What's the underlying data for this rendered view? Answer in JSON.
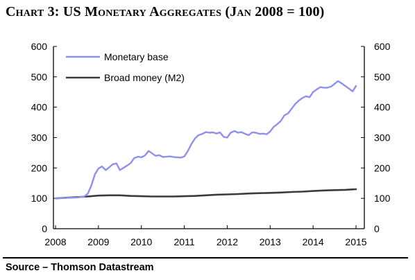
{
  "chart_data": {
    "type": "line",
    "title": "Chart 3: US Monetary Aggregates (Jan 2008 = 100)",
    "source": "Source – Thomson Datastream",
    "ylim": [
      0,
      600
    ],
    "xlim": [
      2008,
      2015.25
    ],
    "y_ticks": [
      "0",
      "100",
      "200",
      "300",
      "400",
      "500",
      "600"
    ],
    "y_tick_values": [
      0,
      100,
      200,
      300,
      400,
      500,
      600
    ],
    "x_ticks": [
      "2008",
      "2009",
      "2010",
      "2011",
      "2012",
      "2013",
      "2014",
      "2015"
    ],
    "x_tick_values": [
      2008,
      2009,
      2010,
      2011,
      2012,
      2013,
      2014,
      2015
    ],
    "legend_position": "top-left",
    "grid": false,
    "dual_axis_mirrored": true,
    "series": [
      {
        "name": "Monetary base",
        "color": "#8f8ff0",
        "points": [
          [
            2008.0,
            100
          ],
          [
            2008.17,
            101
          ],
          [
            2008.33,
            102
          ],
          [
            2008.5,
            103
          ],
          [
            2008.67,
            106
          ],
          [
            2008.75,
            115
          ],
          [
            2008.83,
            140
          ],
          [
            2008.92,
            180
          ],
          [
            2009.0,
            198
          ],
          [
            2009.08,
            205
          ],
          [
            2009.17,
            193
          ],
          [
            2009.25,
            202
          ],
          [
            2009.33,
            212
          ],
          [
            2009.42,
            215
          ],
          [
            2009.5,
            193
          ],
          [
            2009.58,
            200
          ],
          [
            2009.67,
            208
          ],
          [
            2009.75,
            216
          ],
          [
            2009.83,
            232
          ],
          [
            2009.92,
            237
          ],
          [
            2010.0,
            235
          ],
          [
            2010.08,
            241
          ],
          [
            2010.17,
            256
          ],
          [
            2010.25,
            248
          ],
          [
            2010.33,
            240
          ],
          [
            2010.42,
            242
          ],
          [
            2010.5,
            236
          ],
          [
            2010.58,
            237
          ],
          [
            2010.67,
            238
          ],
          [
            2010.75,
            236
          ],
          [
            2010.83,
            235
          ],
          [
            2010.92,
            234
          ],
          [
            2011.0,
            238
          ],
          [
            2011.08,
            255
          ],
          [
            2011.17,
            280
          ],
          [
            2011.25,
            297
          ],
          [
            2011.33,
            308
          ],
          [
            2011.42,
            312
          ],
          [
            2011.5,
            318
          ],
          [
            2011.58,
            316
          ],
          [
            2011.67,
            317
          ],
          [
            2011.75,
            313
          ],
          [
            2011.83,
            317
          ],
          [
            2011.92,
            302
          ],
          [
            2012.0,
            300
          ],
          [
            2012.08,
            316
          ],
          [
            2012.17,
            322
          ],
          [
            2012.25,
            316
          ],
          [
            2012.33,
            318
          ],
          [
            2012.42,
            312
          ],
          [
            2012.5,
            308
          ],
          [
            2012.58,
            317
          ],
          [
            2012.67,
            316
          ],
          [
            2012.75,
            312
          ],
          [
            2012.83,
            313
          ],
          [
            2012.92,
            311
          ],
          [
            2013.0,
            320
          ],
          [
            2013.08,
            335
          ],
          [
            2013.17,
            345
          ],
          [
            2013.25,
            355
          ],
          [
            2013.33,
            373
          ],
          [
            2013.42,
            380
          ],
          [
            2013.5,
            395
          ],
          [
            2013.58,
            410
          ],
          [
            2013.67,
            422
          ],
          [
            2013.75,
            430
          ],
          [
            2013.83,
            436
          ],
          [
            2013.92,
            433
          ],
          [
            2014.0,
            450
          ],
          [
            2014.08,
            458
          ],
          [
            2014.17,
            466
          ],
          [
            2014.25,
            464
          ],
          [
            2014.33,
            464
          ],
          [
            2014.42,
            468
          ],
          [
            2014.5,
            477
          ],
          [
            2014.58,
            486
          ],
          [
            2014.67,
            478
          ],
          [
            2014.75,
            470
          ],
          [
            2014.83,
            462
          ],
          [
            2014.92,
            452
          ],
          [
            2015.0,
            470
          ]
        ]
      },
      {
        "name": "Broad money (M2)",
        "color": "#3a3a3a",
        "points": [
          [
            2008.0,
            100
          ],
          [
            2008.25,
            102
          ],
          [
            2008.5,
            104
          ],
          [
            2008.75,
            106
          ],
          [
            2009.0,
            109
          ],
          [
            2009.25,
            110
          ],
          [
            2009.5,
            110
          ],
          [
            2009.75,
            108
          ],
          [
            2010.0,
            107
          ],
          [
            2010.25,
            106
          ],
          [
            2010.5,
            106
          ],
          [
            2010.75,
            106
          ],
          [
            2011.0,
            107
          ],
          [
            2011.25,
            108
          ],
          [
            2011.5,
            110
          ],
          [
            2011.75,
            112
          ],
          [
            2012.0,
            113
          ],
          [
            2012.25,
            114
          ],
          [
            2012.5,
            116
          ],
          [
            2012.75,
            117
          ],
          [
            2013.0,
            118
          ],
          [
            2013.25,
            119
          ],
          [
            2013.5,
            121
          ],
          [
            2013.75,
            122
          ],
          [
            2014.0,
            124
          ],
          [
            2014.25,
            126
          ],
          [
            2014.5,
            127
          ],
          [
            2014.75,
            128
          ],
          [
            2015.0,
            130
          ]
        ]
      }
    ]
  }
}
